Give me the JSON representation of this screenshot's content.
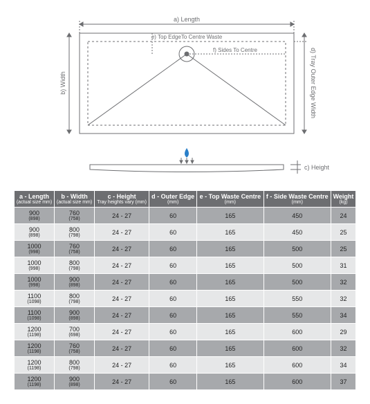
{
  "diagram": {
    "labels": {
      "a": "a) Length",
      "b": "b) Width",
      "c": "c) Height",
      "d": "d) Tray Outer Edge Width",
      "e": "e) Top EdgeTo Centre Waste",
      "f": "f) Sides To Centre"
    },
    "stroke": "#6d6e71",
    "water_fill": "#2a7fc9"
  },
  "table": {
    "headers": [
      {
        "main": "a - Length",
        "sub": "(actual size mm)"
      },
      {
        "main": "b - Width",
        "sub": "(actual size mm)"
      },
      {
        "main": "c - Height",
        "sub": "Tray heights vary (mm)"
      },
      {
        "main": "d - Outer Edge",
        "sub": "(mm)"
      },
      {
        "main": "e - Top Waste Centre",
        "sub": "(mm)"
      },
      {
        "main": "f - Side Waste Centre",
        "sub": "(mm)"
      },
      {
        "main": "Weight",
        "sub": "(kg)"
      }
    ],
    "rows": [
      {
        "a": "900",
        "as": "(898)",
        "b": "760",
        "bs": "(758)",
        "c": "24 - 27",
        "d": "60",
        "e": "165",
        "f": "450",
        "w": "24"
      },
      {
        "a": "900",
        "as": "(898)",
        "b": "800",
        "bs": "(798)",
        "c": "24 - 27",
        "d": "60",
        "e": "165",
        "f": "450",
        "w": "25"
      },
      {
        "a": "1000",
        "as": "(998)",
        "b": "760",
        "bs": "(758)",
        "c": "24 - 27",
        "d": "60",
        "e": "165",
        "f": "500",
        "w": "25"
      },
      {
        "a": "1000",
        "as": "(998)",
        "b": "800",
        "bs": "(798)",
        "c": "24 - 27",
        "d": "60",
        "e": "165",
        "f": "500",
        "w": "31"
      },
      {
        "a": "1000",
        "as": "(998)",
        "b": "900",
        "bs": "(898)",
        "c": "24 - 27",
        "d": "60",
        "e": "165",
        "f": "500",
        "w": "32"
      },
      {
        "a": "1100",
        "as": "(1098)",
        "b": "800",
        "bs": "(798)",
        "c": "24 - 27",
        "d": "60",
        "e": "165",
        "f": "550",
        "w": "32"
      },
      {
        "a": "1100",
        "as": "(1098)",
        "b": "900",
        "bs": "(898)",
        "c": "24 - 27",
        "d": "60",
        "e": "165",
        "f": "550",
        "w": "34"
      },
      {
        "a": "1200",
        "as": "(1198)",
        "b": "700",
        "bs": "(698)",
        "c": "24 - 27",
        "d": "60",
        "e": "165",
        "f": "600",
        "w": "29"
      },
      {
        "a": "1200",
        "as": "(1198)",
        "b": "760",
        "bs": "(758)",
        "c": "24 - 27",
        "d": "60",
        "e": "165",
        "f": "600",
        "w": "32"
      },
      {
        "a": "1200",
        "as": "(1198)",
        "b": "800",
        "bs": "(798)",
        "c": "24 - 27",
        "d": "60",
        "e": "165",
        "f": "600",
        "w": "34"
      },
      {
        "a": "1200",
        "as": "(1198)",
        "b": "900",
        "bs": "(898)",
        "c": "24 - 27",
        "d": "60",
        "e": "165",
        "f": "600",
        "w": "37"
      }
    ]
  }
}
